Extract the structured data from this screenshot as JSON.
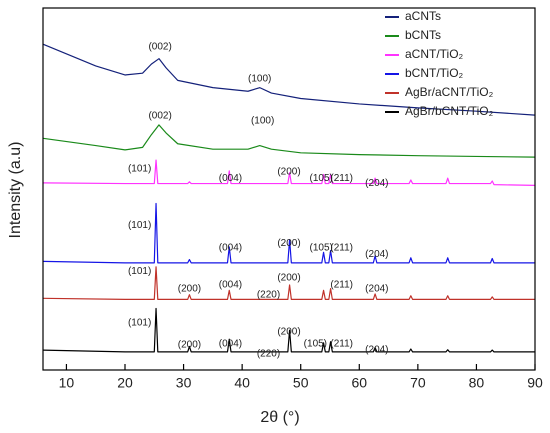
{
  "chart_data": {
    "type": "line",
    "xlabel": "2θ (°)",
    "ylabel": "Intensity (a.u)",
    "xlim": [
      6,
      90
    ],
    "xticks": [
      10,
      20,
      30,
      40,
      50,
      60,
      70,
      80,
      90
    ],
    "ylim": [
      0,
      100
    ],
    "legend": "upper right",
    "series": [
      {
        "name": "aCNTs",
        "color": "#14217a",
        "x": [
          6,
          15,
          20,
          23,
          24.5,
          25.8,
          27,
          29,
          35,
          41,
          43,
          45,
          50,
          60,
          70,
          80,
          90
        ],
        "values": [
          90,
          84,
          81.5,
          82,
          84.5,
          86,
          83.5,
          80,
          78,
          77,
          78,
          76.5,
          75,
          73.5,
          72.4,
          71.5,
          70.4
        ]
      },
      {
        "name": "bCNTs",
        "color": "#1a8a1a",
        "x": [
          6,
          15,
          20,
          23,
          24.5,
          25.8,
          27,
          29,
          35,
          41,
          43,
          45,
          50,
          60,
          70,
          80,
          90
        ],
        "values": [
          64,
          62,
          60.8,
          61.5,
          65,
          67.7,
          65.5,
          62.5,
          61,
          61,
          62,
          61,
          60,
          59.5,
          59.2,
          59,
          58.8
        ]
      },
      {
        "name": "aCNT/TiO₂",
        "color": "#ff33ff",
        "x": [
          6,
          20,
          25.0,
          25.3,
          25.6,
          30.7,
          31,
          31.3,
          37.5,
          37.8,
          38.1,
          47.8,
          48.1,
          48.4,
          53.6,
          53.9,
          54.2,
          54.8,
          55.1,
          55.4,
          62.4,
          62.7,
          63,
          68.5,
          68.8,
          69.1,
          74.8,
          75.1,
          75.4,
          82.4,
          82.7,
          83,
          90
        ],
        "values": [
          51.7,
          51.5,
          51.5,
          58,
          51.5,
          51.5,
          52,
          51.5,
          51.5,
          55,
          51.5,
          51.5,
          54.5,
          51.5,
          51.5,
          54,
          51.5,
          51.5,
          54,
          51.5,
          51.5,
          53,
          51.5,
          51.5,
          52.5,
          51.5,
          51.5,
          53,
          51.5,
          51.5,
          52.2,
          51.2,
          51
        ]
      },
      {
        "name": "bCNT/TiO₂",
        "color": "#1515e6",
        "x": [
          6,
          20,
          25.0,
          25.3,
          25.6,
          30.7,
          31,
          31.3,
          37.5,
          37.8,
          38.1,
          47.8,
          48.1,
          48.4,
          53.6,
          53.9,
          54.2,
          54.8,
          55.1,
          55.4,
          62.4,
          62.7,
          63,
          68.5,
          68.8,
          69.1,
          74.8,
          75.1,
          75.4,
          82.4,
          82.7,
          83,
          90
        ],
        "values": [
          30,
          29.6,
          29.6,
          46,
          29.6,
          29.6,
          30.5,
          29.6,
          29.6,
          34,
          29.6,
          29.6,
          36,
          29.6,
          29.6,
          32.5,
          29.6,
          29.6,
          33,
          29.6,
          29.6,
          31.5,
          29.6,
          29.6,
          31,
          29.6,
          29.6,
          31,
          29.6,
          29.6,
          30.8,
          29.6,
          29.6
        ]
      },
      {
        "name": "AgBr/aCNT/TiO₂",
        "color": "#c0322a",
        "x": [
          6,
          20,
          25.0,
          25.3,
          25.6,
          30.7,
          31,
          31.3,
          37.5,
          37.8,
          38.1,
          47.8,
          48.1,
          48.4,
          53.6,
          53.9,
          54.2,
          54.8,
          55.1,
          55.4,
          62.4,
          62.7,
          63,
          68.5,
          68.8,
          69.1,
          74.8,
          75.1,
          75.4,
          82.4,
          82.7,
          83,
          90
        ],
        "values": [
          19.8,
          19.5,
          19.5,
          28.5,
          19.5,
          19.5,
          20.8,
          19.5,
          19.5,
          22,
          19.5,
          19.5,
          23.5,
          19.5,
          19.5,
          22,
          19.5,
          19.5,
          22.5,
          19.5,
          19.5,
          21,
          19.5,
          19.5,
          20.5,
          19.5,
          19.5,
          20.5,
          19.5,
          19.5,
          20.2,
          19.5,
          19.5
        ]
      },
      {
        "name": "AgBr/bCNT/TiO₂",
        "color": "#000000",
        "x": [
          6,
          20,
          25.0,
          25.3,
          25.6,
          30.7,
          31,
          31.3,
          37.5,
          37.8,
          38.1,
          47.8,
          48.1,
          48.4,
          53.6,
          53.9,
          54.2,
          54.8,
          55.1,
          55.4,
          62.4,
          62.7,
          63,
          68.5,
          68.8,
          69.1,
          74.8,
          75.1,
          75.4,
          82.4,
          82.7,
          83,
          90
        ],
        "values": [
          5.5,
          5,
          5,
          17,
          5,
          5,
          6.5,
          5,
          5,
          8.5,
          5,
          5,
          11,
          5,
          5,
          7.5,
          5,
          5,
          7.8,
          5,
          5,
          6.2,
          5,
          5,
          5.8,
          5,
          5,
          5.6,
          5,
          5,
          5.5,
          5,
          5
        ]
      }
    ],
    "annotations": [
      {
        "text": "(002)",
        "x": 26,
        "y": 89.2
      },
      {
        "text": "(100)",
        "x": 43,
        "y": 80.4
      },
      {
        "text": "(002)",
        "x": 26,
        "y": 70.2
      },
      {
        "text": "(100)",
        "x": 43.5,
        "y": 68.8
      },
      {
        "text": "(101)",
        "x": 22.5,
        "y": 55.5
      },
      {
        "text": "(004)",
        "x": 38,
        "y": 53
      },
      {
        "text": "(200)",
        "x": 48,
        "y": 54.7
      },
      {
        "text": "(105)",
        "x": 53.5,
        "y": 53
      },
      {
        "text": "(211)",
        "x": 57,
        "y": 53
      },
      {
        "text": "(204)",
        "x": 63,
        "y": 51.6
      },
      {
        "text": "(101)",
        "x": 22.5,
        "y": 40
      },
      {
        "text": "(004)",
        "x": 38,
        "y": 33.7
      },
      {
        "text": "(200)",
        "x": 48,
        "y": 35
      },
      {
        "text": "(105)",
        "x": 53.5,
        "y": 33.7
      },
      {
        "text": "(211)",
        "x": 57,
        "y": 33.7
      },
      {
        "text": "(204)",
        "x": 63,
        "y": 32
      },
      {
        "text": "(101)",
        "x": 22.5,
        "y": 27.3
      },
      {
        "text": "(200)",
        "x": 31,
        "y": 22.4
      },
      {
        "text": "(004)",
        "x": 38,
        "y": 23.5
      },
      {
        "text": "(220)",
        "x": 44.5,
        "y": 20.7
      },
      {
        "text": "(200)",
        "x": 48,
        "y": 25.4
      },
      {
        "text": "(211)",
        "x": 57,
        "y": 23.5
      },
      {
        "text": "(204)",
        "x": 63,
        "y": 22.4
      },
      {
        "text": "(101)",
        "x": 22.5,
        "y": 13
      },
      {
        "text": "(200)",
        "x": 31,
        "y": 6.9
      },
      {
        "text": "(004)",
        "x": 38,
        "y": 7.2
      },
      {
        "text": "(220)",
        "x": 44.5,
        "y": 4.4
      },
      {
        "text": "(200)",
        "x": 48,
        "y": 10.5
      },
      {
        "text": "(105)",
        "x": 52.5,
        "y": 7.2
      },
      {
        "text": "(211)",
        "x": 57,
        "y": 7.2
      },
      {
        "text": "(204)",
        "x": 63,
        "y": 5.5
      }
    ]
  }
}
